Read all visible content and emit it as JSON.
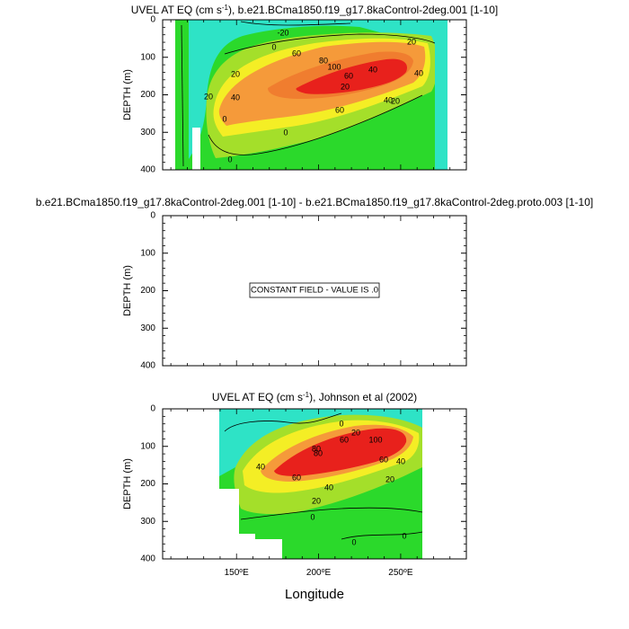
{
  "palette": {
    "red": "#e8211c",
    "orange": "#f59a3a",
    "yellow": "#f4ee25",
    "lime": "#a4df2a",
    "green": "#2bd92b",
    "cyan": "#2ee3c6",
    "line": "#000000"
  },
  "xlabel": "Longitude",
  "chart_data": [
    {
      "type": "contour",
      "title_pre": "UVEL AT EQ (cm s",
      "title_exp": "-1",
      "title_post": "), b.e21.BCma1850.f19_g17.8kaControl-2deg.001 [1-10]",
      "ylabel": "DEPTH (m)",
      "yticks": [
        "0",
        "100",
        "200",
        "300",
        "400"
      ],
      "ylim": [
        0,
        400
      ],
      "xlim_deg_e": [
        105,
        290
      ],
      "contour_labels": [
        "-20",
        "0",
        "20",
        "40",
        "60",
        "80",
        "100",
        "60",
        "40",
        "20",
        "60",
        "40",
        "20",
        "40",
        "20",
        "0",
        "0",
        "0",
        "20"
      ],
      "max_speed_cm_s": 100,
      "core_lon_e": 230,
      "core_depth_m": 120
    },
    {
      "type": "difference",
      "title": "b.e21.BCma1850.f19_g17.8kaControl-2deg.001 [1-10] - b.e21.BCma1850.f19_g17.8kaControl-2deg.proto.003 [1-10]",
      "ylabel": "DEPTH (m)",
      "yticks": [
        "0",
        "100",
        "200",
        "300",
        "400"
      ],
      "ylim": [
        0,
        400
      ],
      "annotation": "CONSTANT FIELD - VALUE IS .0"
    },
    {
      "type": "contour",
      "title_pre": "UVEL AT EQ (cm s",
      "title_exp": "-1",
      "title_post": "), Johnson et al (2002)",
      "ylabel": "DEPTH (m)",
      "yticks": [
        "0",
        "100",
        "200",
        "300",
        "400"
      ],
      "ylim": [
        0,
        400
      ],
      "xlim_deg_e": [
        105,
        290
      ],
      "xticks": [
        {
          "value": 150,
          "label": "150"
        },
        {
          "value": 200,
          "label": "200"
        },
        {
          "value": 250,
          "label": "250"
        }
      ],
      "deg_symbol": "o",
      "hemisphere": "E",
      "contour_labels": [
        "0",
        "20",
        "40",
        "80",
        "100",
        "60",
        "60",
        "80",
        "60",
        "40",
        "20",
        "40",
        "20",
        "0",
        "0",
        "0"
      ],
      "max_speed_cm_s": 100,
      "core_lon_e": 225,
      "core_depth_m": 110
    }
  ]
}
